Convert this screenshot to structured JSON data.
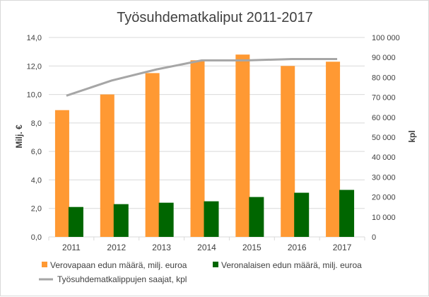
{
  "chart_data": {
    "type": "bar",
    "title": "Työsuhdematkaliput  2011-2017",
    "categories": [
      "2011",
      "2012",
      "2013",
      "2014",
      "2015",
      "2016",
      "2017"
    ],
    "ylabel": "Milj. €",
    "y2label": "kpl",
    "ylim": [
      0,
      14
    ],
    "y2lim": [
      0,
      100000
    ],
    "yticks": [
      "0,0",
      "2,0",
      "4,0",
      "6,0",
      "8,0",
      "10,0",
      "12,0",
      "14,0"
    ],
    "y2ticks": [
      "0",
      "10 000",
      "20 000",
      "30 000",
      "40 000",
      "50 000",
      "60 000",
      "70 000",
      "80 000",
      "90 000",
      "100 000"
    ],
    "grid": true,
    "legend_position": "bottom",
    "series": [
      {
        "name": "Verovapaan edun määrä, milj. euroa",
        "type": "bar",
        "axis": "left",
        "color": "#ff9933",
        "values": [
          8.9,
          10.0,
          11.5,
          12.4,
          12.8,
          12.0,
          12.3
        ]
      },
      {
        "name": "Veronalaisen edun määrä, milj. euroa",
        "type": "bar",
        "axis": "left",
        "color": "#006600",
        "values": [
          2.1,
          2.3,
          2.4,
          2.5,
          2.8,
          3.1,
          3.3
        ]
      },
      {
        "name": "Työsuhdematkalippujen saajat, kpl",
        "type": "line",
        "axis": "right",
        "color": "#a6a6a6",
        "values": [
          70800,
          78400,
          84000,
          88500,
          88500,
          89200,
          89200
        ]
      }
    ]
  }
}
